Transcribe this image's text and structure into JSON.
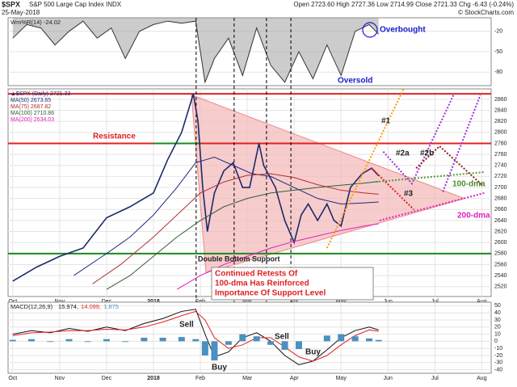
{
  "header": {
    "symbol": "$SPX",
    "name": "S&P 500 Large Cap Index INDX",
    "date": "25-May-2018",
    "quote": "Open 2723.60 High 2727.36 Low 2714.99 Close 2721.33 Chg -6.43 (-0.24%)",
    "credit": "© StockCharts.com"
  },
  "annotations": {
    "overbought": "Overbought",
    "oversold": "Oversold",
    "resistance": "Resistance",
    "support": "Double Bottom Support",
    "callout": [
      "Continued Retests Of",
      "100-dma Has Reinforced",
      "Importance Of Support Level"
    ],
    "p1": "#1",
    "p2a": "#2a",
    "p2b": "#2b",
    "p3": "#3",
    "dma100": "100-dma",
    "dma200": "200-dma",
    "sell1": "Sell",
    "sell2": "Sell",
    "buy1": "Buy",
    "buy2": "Buy"
  },
  "chart_data": [
    {
      "type": "line",
      "title": "Wm%R(14) -24.02",
      "ylim": [
        -100,
        0
      ],
      "yticks": [
        -20,
        -50,
        -80
      ],
      "xlim": [
        -0.1,
        10.2
      ],
      "series": [
        {
          "color": "#333333",
          "x": [
            0,
            0.3,
            0.6,
            0.9,
            1.2,
            1.5,
            1.8,
            2.1,
            2.4,
            2.7,
            3.0,
            3.3,
            3.6,
            3.9,
            4.1,
            4.3,
            4.6,
            4.9,
            5.2,
            5.5,
            5.8,
            6.1,
            6.4,
            6.7,
            7.0,
            7.3,
            7.6,
            7.8
          ],
          "values": [
            -30,
            -10,
            -15,
            -40,
            -20,
            -5,
            -30,
            -15,
            -60,
            -20,
            -10,
            -5,
            -8,
            -5,
            -95,
            -60,
            -30,
            -85,
            -15,
            -70,
            -95,
            -50,
            -90,
            -40,
            -85,
            -20,
            -10,
            -24.02
          ]
        }
      ]
    },
    {
      "type": "line",
      "ylim": [
        2502,
        2879
      ],
      "yticks": [
        2520,
        2540,
        2560,
        2580,
        2600,
        2620,
        2640,
        2660,
        2680,
        2700,
        2720,
        2740,
        2760,
        2780,
        2800,
        2820,
        2840,
        2860
      ],
      "xlim": [
        -0.1,
        10.2
      ],
      "xticks": [
        {
          "value": 0,
          "label": "Oct"
        },
        {
          "value": 1,
          "label": "Nov"
        },
        {
          "value": 2,
          "label": "Dec"
        },
        {
          "value": 3,
          "label": "2018"
        },
        {
          "value": 4,
          "label": "Feb"
        },
        {
          "value": 5,
          "label": "Mar"
        },
        {
          "value": 6,
          "label": "Apr"
        },
        {
          "value": 7,
          "label": "May"
        },
        {
          "value": 8,
          "label": "Jun"
        },
        {
          "value": 9,
          "label": "Jul"
        },
        {
          "value": 10,
          "label": "Aug"
        }
      ],
      "series": [
        {
          "name": "▲$SPX (Daily) 2721.33",
          "color": "#1a2a6c",
          "x": [
            0,
            0.5,
            1,
            1.5,
            2,
            2.5,
            3,
            3.3,
            3.6,
            3.85,
            3.95,
            4.05,
            4.15,
            4.3,
            4.5,
            4.7,
            4.9,
            5.05,
            5.25,
            5.35,
            5.6,
            5.8,
            6.0,
            6.15,
            6.3,
            6.5,
            6.7,
            6.85,
            7.0,
            7.2,
            7.45,
            7.65,
            7.8
          ],
          "values": [
            2530,
            2555,
            2575,
            2590,
            2645,
            2665,
            2690,
            2750,
            2800,
            2870,
            2820,
            2700,
            2620,
            2690,
            2730,
            2745,
            2700,
            2700,
            2780,
            2740,
            2700,
            2640,
            2600,
            2650,
            2670,
            2640,
            2670,
            2640,
            2630,
            2700,
            2725,
            2735,
            2721.33
          ]
        },
        {
          "name": "MA(50) 2673.65",
          "color": "#1f2a80",
          "x": [
            1.3,
            2,
            2.5,
            3,
            3.5,
            3.9,
            4.3,
            4.7,
            5.1,
            5.5,
            6,
            6.5,
            7,
            7.5,
            7.8
          ],
          "values": [
            2540,
            2580,
            2610,
            2650,
            2700,
            2745,
            2755,
            2740,
            2725,
            2720,
            2700,
            2680,
            2670,
            2672,
            2673.65
          ]
        },
        {
          "name": "MA(75) 2687.82",
          "color": "#b03030",
          "x": [
            1.7,
            2.3,
            3,
            3.5,
            4,
            4.5,
            5,
            5.5,
            6,
            6.5,
            7,
            7.5,
            7.8
          ],
          "values": [
            2525,
            2560,
            2610,
            2650,
            2690,
            2710,
            2722,
            2725,
            2718,
            2705,
            2695,
            2690,
            2687.82
          ]
        },
        {
          "name": "MA(100) 2710.86",
          "color": "#2e5e2e",
          "x": [
            2,
            2.5,
            3,
            3.5,
            4,
            4.5,
            5,
            5.5,
            6,
            6.5,
            7,
            7.5,
            7.8
          ],
          "values": [
            2515,
            2540,
            2575,
            2610,
            2640,
            2665,
            2680,
            2690,
            2695,
            2700,
            2704,
            2708,
            2710.86
          ]
        },
        {
          "name": "MA(200) 2634.03",
          "color": "#e020c0",
          "x": [
            3.5,
            4,
            4.5,
            5,
            5.5,
            6,
            6.5,
            7,
            7.5,
            7.8
          ],
          "values": [
            2515,
            2540,
            2560,
            2575,
            2590,
            2602,
            2612,
            2622,
            2630,
            2634.03
          ]
        }
      ],
      "hlines": [
        {
          "value": 2870,
          "color": "#e02020"
        },
        {
          "value": 2780,
          "color": "#e02020"
        },
        {
          "value": 2580,
          "color": "#1a8a1a"
        }
      ],
      "segments": [
        {
          "color": "#1a8a1a",
          "x": [
            3.0,
            4.0
          ],
          "values": [
            2780,
            2780
          ]
        }
      ],
      "triangle": {
        "color": "#f4b6b6",
        "x": [
          3.81,
          9.63,
          4.12
        ],
        "values": [
          2868,
          2680,
          2545
        ]
      },
      "vlines": [
        3.91,
        4.72,
        5.41,
        5.93
      ],
      "projections": [
        {
          "color": "#ff9900",
          "x": [
            6.7,
            8.34
          ],
          "values": [
            2590,
            2880
          ]
        },
        {
          "color": "#e02020",
          "x": [
            7.65,
            8.55
          ],
          "values": [
            2735,
            2660
          ]
        },
        {
          "color": "#9b30e0",
          "x": [
            7.9,
            8.51,
            9.41
          ],
          "values": [
            2765,
            2707,
            2870
          ]
        },
        {
          "color": "#9b1b1b",
          "x": [
            8.6,
            9.1,
            10.0
          ],
          "values": [
            2735,
            2775,
            2705
          ]
        },
        {
          "color": "#9b30e0",
          "x": [
            9.17,
            9.97
          ],
          "values": [
            2692,
            2868
          ]
        },
        {
          "color": "#5a9a3a",
          "x": [
            7.74,
            10.06
          ],
          "values": [
            2710,
            2728
          ]
        },
        {
          "color": "#e020c0",
          "x": [
            7.82,
            10.06
          ],
          "values": [
            2640,
            2690
          ]
        }
      ]
    },
    {
      "type": "line",
      "title": "MACD(12,26,9)",
      "ylim": [
        -45,
        55
      ],
      "yticks": [
        50,
        40,
        30,
        20,
        10,
        0,
        -10,
        -20,
        -30,
        -40
      ],
      "xlim": [
        -0.1,
        10.2
      ],
      "xticks": [
        {
          "value": 0,
          "label": "Oct"
        },
        {
          "value": 1,
          "label": "Nov"
        },
        {
          "value": 2,
          "label": "Dec"
        },
        {
          "value": 3,
          "label": "2018"
        },
        {
          "value": 4,
          "label": "Feb"
        },
        {
          "value": 5,
          "label": "Mar"
        },
        {
          "value": 6,
          "label": "Apr"
        },
        {
          "value": 7,
          "label": "May"
        },
        {
          "value": 8,
          "label": "Jun"
        },
        {
          "value": 9,
          "label": "Jul"
        },
        {
          "value": 10,
          "label": "Aug"
        }
      ],
      "series": [
        {
          "name": "15.974,",
          "color": "#111111",
          "x": [
            0,
            0.4,
            0.8,
            1.2,
            1.6,
            2,
            2.4,
            2.8,
            3.2,
            3.6,
            3.9,
            4.1,
            4.3,
            4.6,
            4.9,
            5.2,
            5.5,
            5.8,
            6.1,
            6.4,
            6.7,
            7,
            7.3,
            7.6,
            7.8
          ],
          "values": [
            10,
            15,
            12,
            18,
            14,
            20,
            15,
            25,
            32,
            42,
            45,
            10,
            -22,
            -15,
            5,
            12,
            0,
            -20,
            -33,
            -28,
            -12,
            5,
            15,
            20,
            15.974
          ]
        },
        {
          "name": "14.099,",
          "color": "#e02020",
          "x": [
            0,
            0.4,
            0.8,
            1.2,
            1.6,
            2,
            2.4,
            2.8,
            3.2,
            3.6,
            3.9,
            4.1,
            4.3,
            4.6,
            4.9,
            5.2,
            5.5,
            5.8,
            6.1,
            6.4,
            6.7,
            7,
            7.3,
            7.6,
            7.8
          ],
          "values": [
            8,
            12,
            13,
            15,
            15,
            17,
            16,
            20,
            27,
            36,
            42,
            30,
            5,
            -10,
            -5,
            5,
            5,
            -8,
            -22,
            -28,
            -20,
            -5,
            8,
            16,
            14.099
          ]
        },
        {
          "name": "1.875",
          "color": "#4a90c2",
          "bars": true,
          "x": [
            0,
            0.4,
            0.8,
            1.2,
            1.6,
            2,
            2.4,
            2.8,
            3.2,
            3.6,
            3.9,
            4.1,
            4.3,
            4.6,
            4.9,
            5.2,
            5.5,
            5.8,
            6.1,
            6.4,
            6.7,
            7,
            7.3,
            7.6,
            7.8
          ],
          "values": [
            2,
            3,
            -1,
            3,
            -1,
            3,
            -1,
            5,
            5,
            6,
            3,
            -20,
            -27,
            -5,
            10,
            7,
            -5,
            -12,
            -11,
            0,
            8,
            10,
            7,
            4,
            1.875
          ]
        }
      ]
    }
  ]
}
